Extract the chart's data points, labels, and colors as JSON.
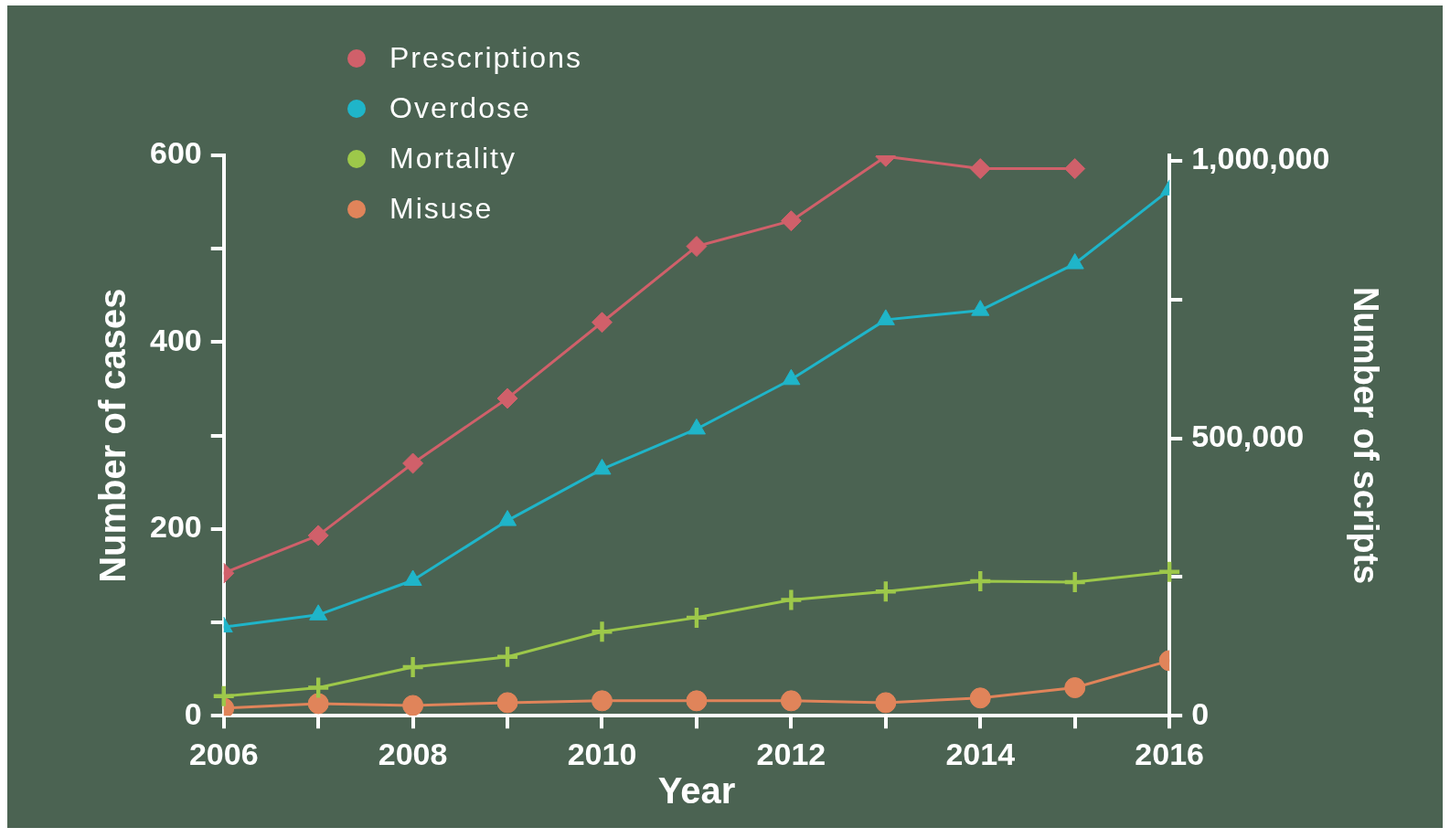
{
  "chart_data": {
    "type": "line",
    "xlabel": "Year",
    "ylabel": "Number of cases",
    "y2label": "Number of scripts",
    "x": [
      2006,
      2007,
      2008,
      2009,
      2010,
      2011,
      2012,
      2013,
      2014,
      2015,
      2016
    ],
    "xlim": [
      2006,
      2016
    ],
    "xticks": [
      2006,
      {
        "value": 2007,
        "label": null
      },
      2008,
      {
        "value": 2009,
        "label": null
      },
      2010,
      {
        "value": 2011,
        "label": null
      },
      2012,
      {
        "value": 2013,
        "label": null
      },
      2014,
      {
        "value": 2015,
        "label": null
      },
      2016
    ],
    "ylim": [
      0,
      600
    ],
    "yticks": [
      0,
      {
        "value": 100,
        "label": null
      },
      200,
      {
        "value": 300,
        "label": null
      },
      400,
      {
        "value": 500,
        "label": null
      },
      600
    ],
    "y2lim": [
      0,
      1010000
    ],
    "y2ticks": [
      0,
      {
        "value": 250000,
        "label": null
      },
      {
        "value": 500000,
        "label": "500,000"
      },
      {
        "value": 750000,
        "label": null
      },
      {
        "value": 1000000,
        "label": "1,000,000"
      }
    ],
    "legend": "top left",
    "grid": false,
    "line_style": "solid",
    "series": [
      {
        "name": "Prescriptions",
        "color": "#d0606a",
        "axis": "y2",
        "marker": "diamond",
        "values": [
          257000,
          325000,
          455000,
          572000,
          709000,
          846000,
          892000,
          1008000,
          986000,
          986000,
          null
        ]
      },
      {
        "name": "Overdose",
        "color": "#1fb5c9",
        "marker": "triangle",
        "values": [
          95,
          108,
          145,
          209,
          264,
          307,
          360,
          424,
          434,
          484,
          563
        ]
      },
      {
        "name": "Mortality",
        "color": "#9dc84a",
        "marker": "cross",
        "values": [
          21,
          30,
          52,
          63,
          90,
          105,
          124,
          133,
          144,
          143,
          154
        ]
      },
      {
        "name": "Misuse",
        "color": "#e0845a",
        "marker": "circle",
        "values": [
          8,
          13,
          11,
          14,
          16,
          16,
          16,
          14,
          19,
          30,
          59
        ]
      }
    ]
  }
}
